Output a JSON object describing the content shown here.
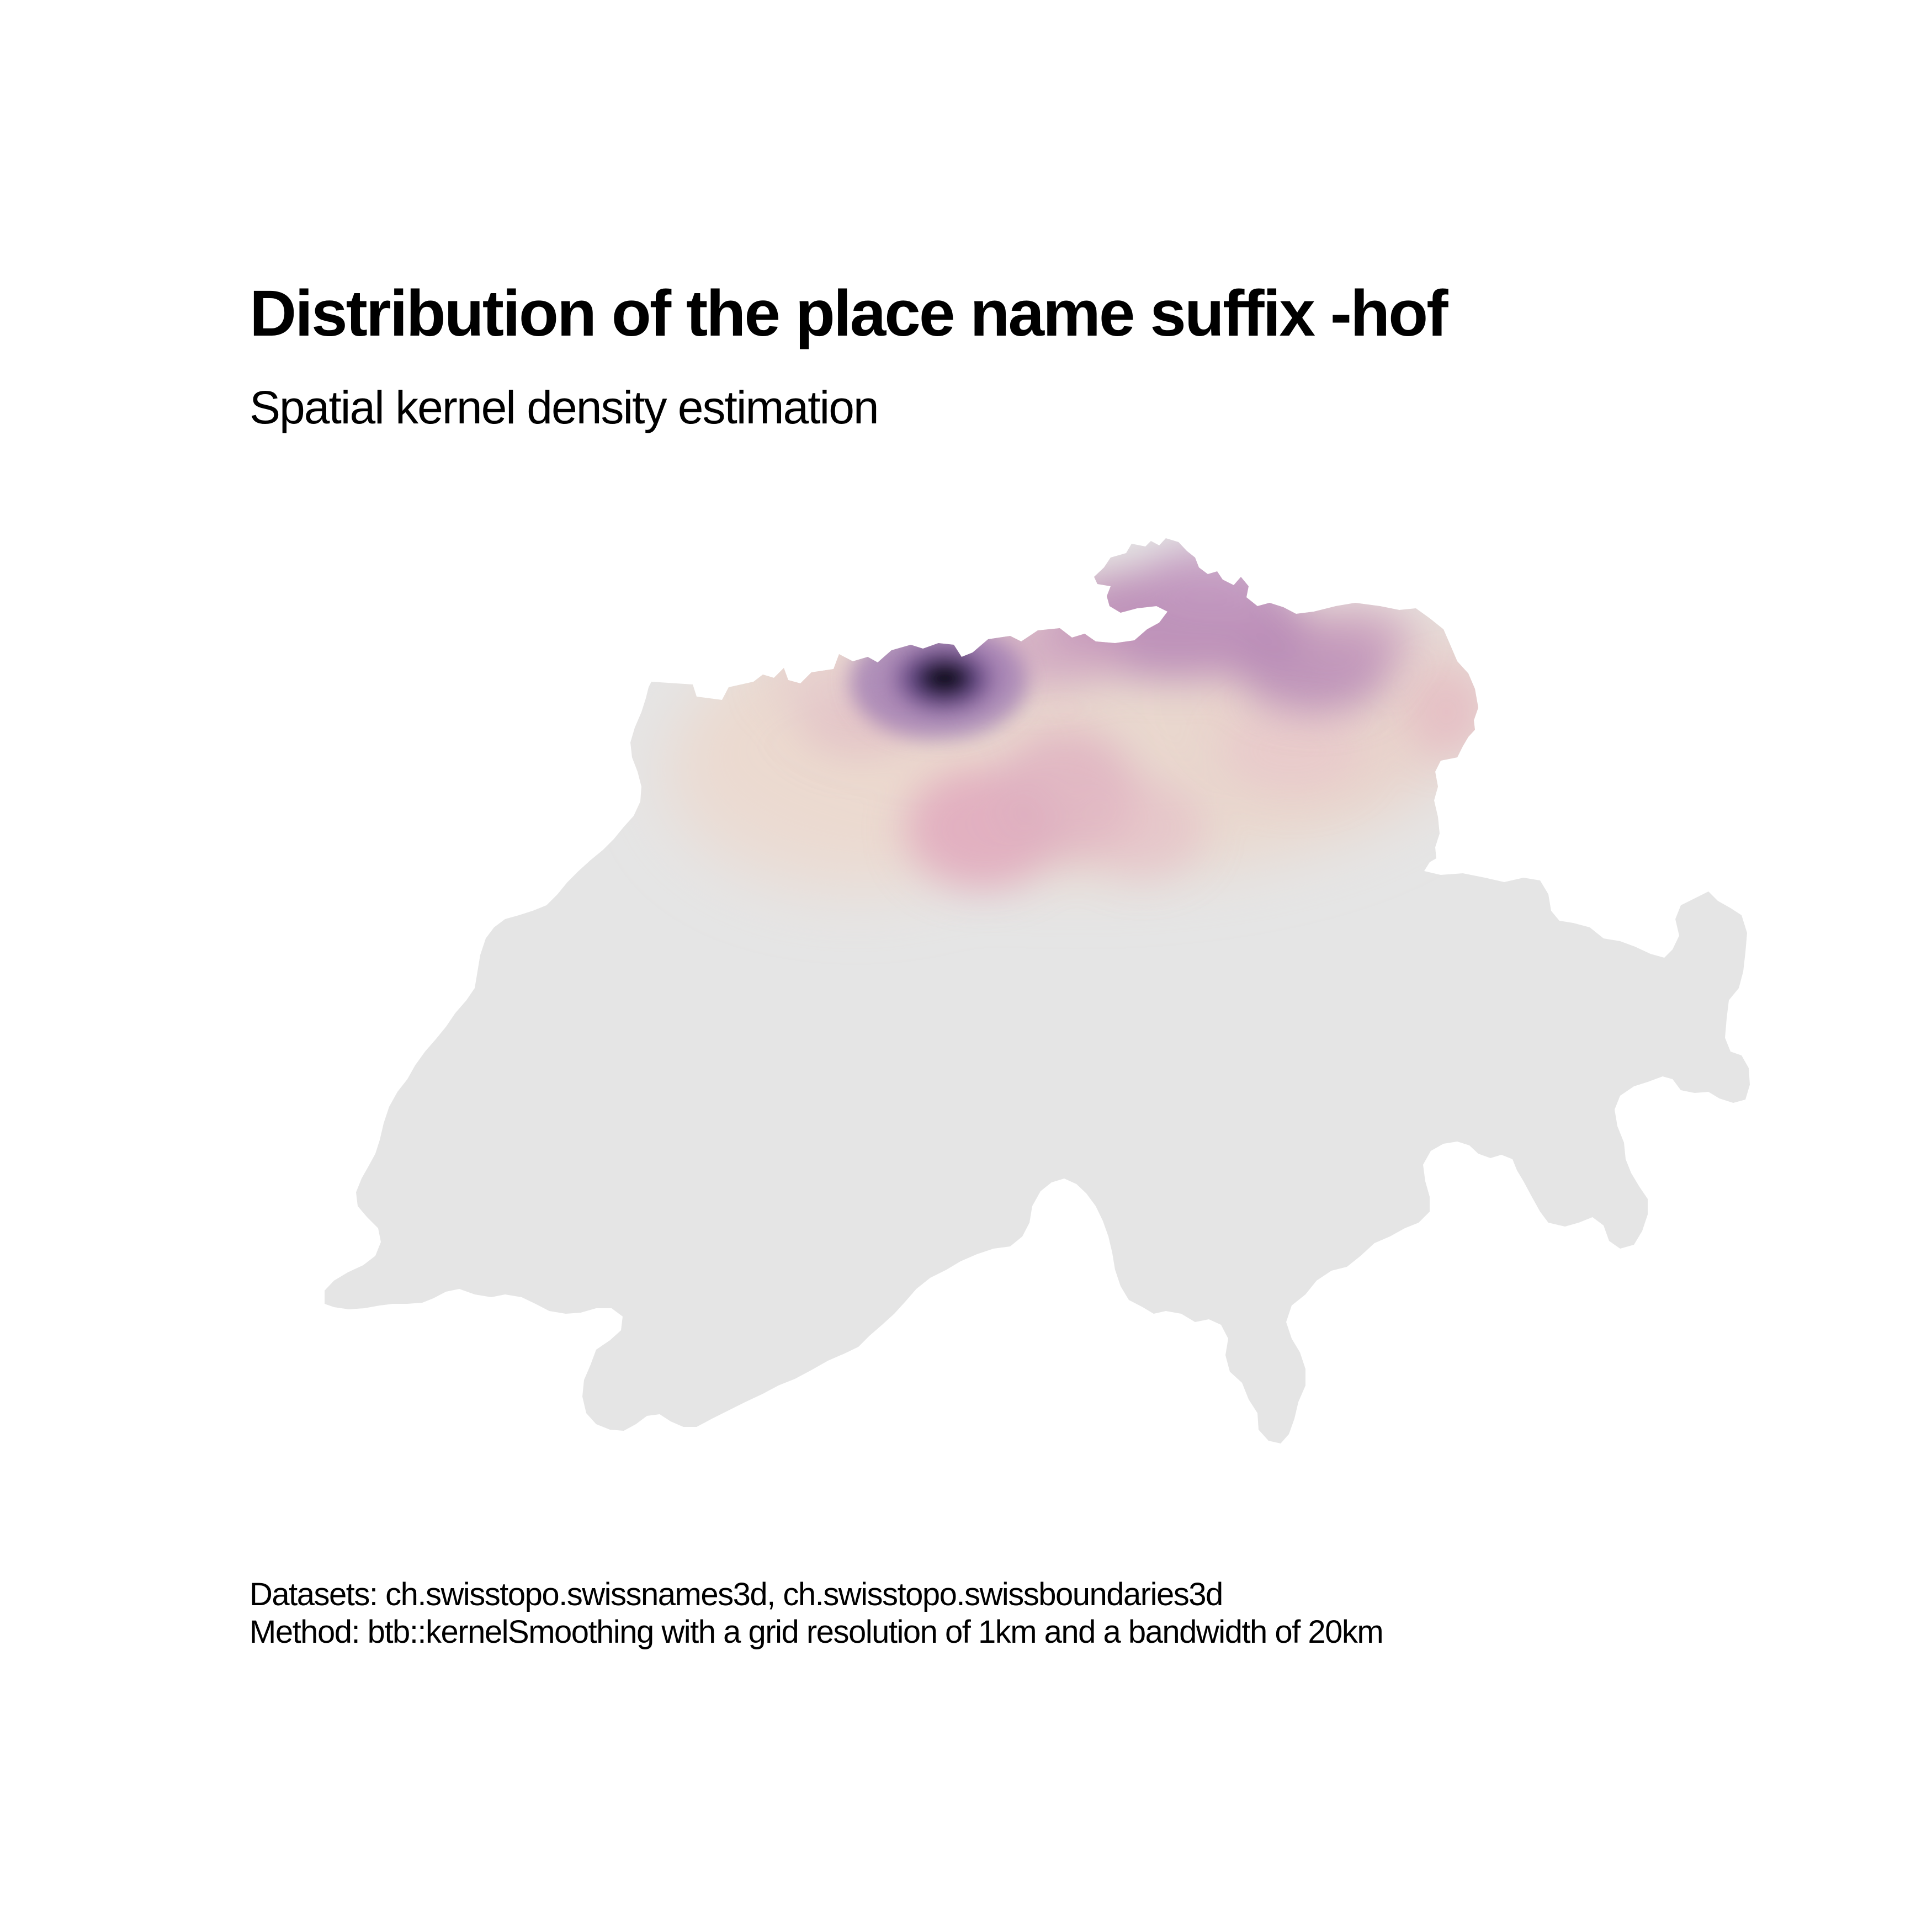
{
  "title": "Distribution of the place name suffix -hof",
  "subtitle": "Spatial kernel density estimation",
  "caption": {
    "datasets": "Datasets: ch.swisstopo.swissnames3d, ch.swisstopo.swissboundaries3d",
    "method": "Method: btb::kernelSmoothing with a grid resolution of 1km and a bandwidth of 20km"
  },
  "colors": {
    "background": "#ffffff",
    "country_fill": "#e5e5e5",
    "density_low": "#e8d3c8",
    "density_mid": "#d4a0b6",
    "density_high": "#a57ab0",
    "density_peak": "#130b1e"
  }
}
